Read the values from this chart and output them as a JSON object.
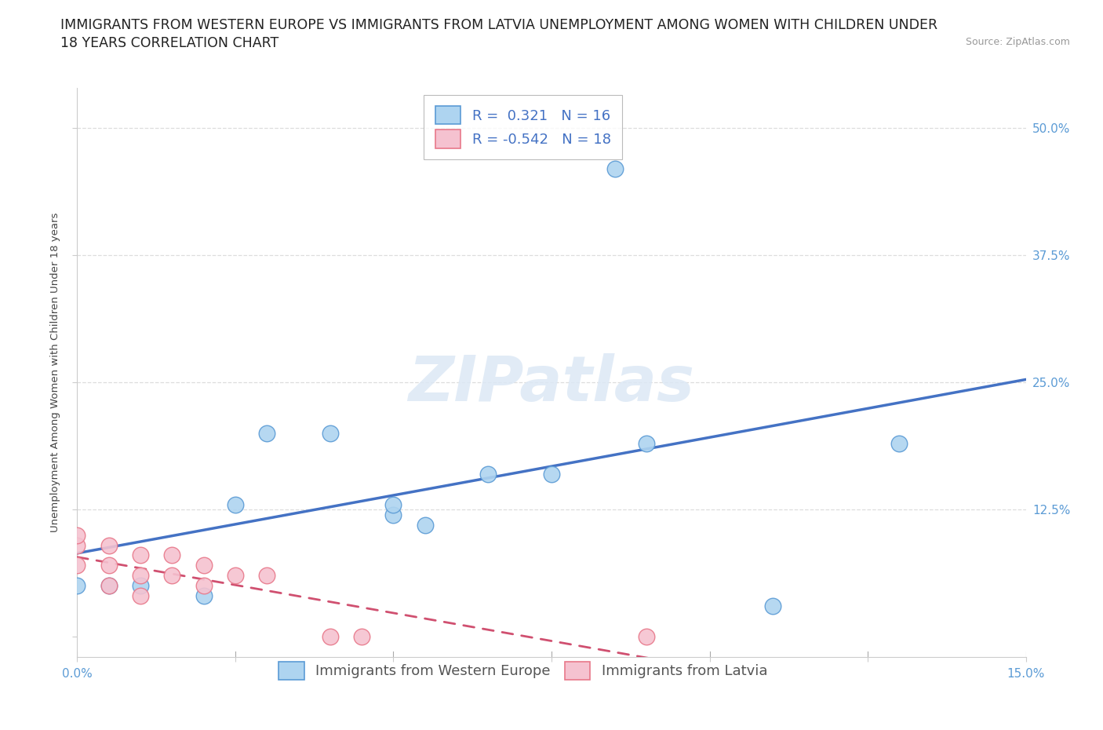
{
  "title_line1": "IMMIGRANTS FROM WESTERN EUROPE VS IMMIGRANTS FROM LATVIA UNEMPLOYMENT AMONG WOMEN WITH CHILDREN UNDER",
  "title_line2": "18 YEARS CORRELATION CHART",
  "source": "Source: ZipAtlas.com",
  "ylabel": "Unemployment Among Women with Children Under 18 years",
  "xlim": [
    0.0,
    0.15
  ],
  "ylim": [
    -0.02,
    0.54
  ],
  "x_ticks": [
    0.0,
    0.025,
    0.05,
    0.075,
    0.1,
    0.125,
    0.15
  ],
  "y_ticks": [
    0.0,
    0.125,
    0.25,
    0.375,
    0.5
  ],
  "r_western": 0.321,
  "n_western": 16,
  "r_latvia": -0.542,
  "n_latvia": 18,
  "western_color": "#aed4f0",
  "western_edge_color": "#5b9bd5",
  "latvia_color": "#f5c2d0",
  "latvia_edge_color": "#e8788a",
  "western_line_color": "#4472c4",
  "latvia_line_color": "#d05070",
  "tick_color": "#5b9bd5",
  "ylabel_color": "#444444",
  "watermark_text": "ZIPatlas",
  "watermark_color": "#dce8f5",
  "watermark_fontsize": 58,
  "scatter_western_x": [
    0.0,
    0.005,
    0.01,
    0.02,
    0.025,
    0.03,
    0.04,
    0.05,
    0.05,
    0.055,
    0.065,
    0.075,
    0.085,
    0.09,
    0.11,
    0.13
  ],
  "scatter_western_y": [
    0.05,
    0.05,
    0.05,
    0.04,
    0.13,
    0.2,
    0.2,
    0.12,
    0.13,
    0.11,
    0.16,
    0.16,
    0.46,
    0.19,
    0.03,
    0.19
  ],
  "scatter_latvia_x": [
    0.0,
    0.0,
    0.0,
    0.005,
    0.005,
    0.005,
    0.01,
    0.01,
    0.01,
    0.015,
    0.015,
    0.02,
    0.02,
    0.025,
    0.03,
    0.04,
    0.045,
    0.09
  ],
  "scatter_latvia_y": [
    0.07,
    0.09,
    0.1,
    0.05,
    0.07,
    0.09,
    0.04,
    0.06,
    0.08,
    0.06,
    0.08,
    0.05,
    0.07,
    0.06,
    0.06,
    0.0,
    0.0,
    0.0
  ],
  "background_color": "#ffffff",
  "grid_color": "#dddddd",
  "title_fontsize": 12.5,
  "axis_label_fontsize": 9.5,
  "tick_fontsize": 11,
  "legend_fontsize": 13
}
